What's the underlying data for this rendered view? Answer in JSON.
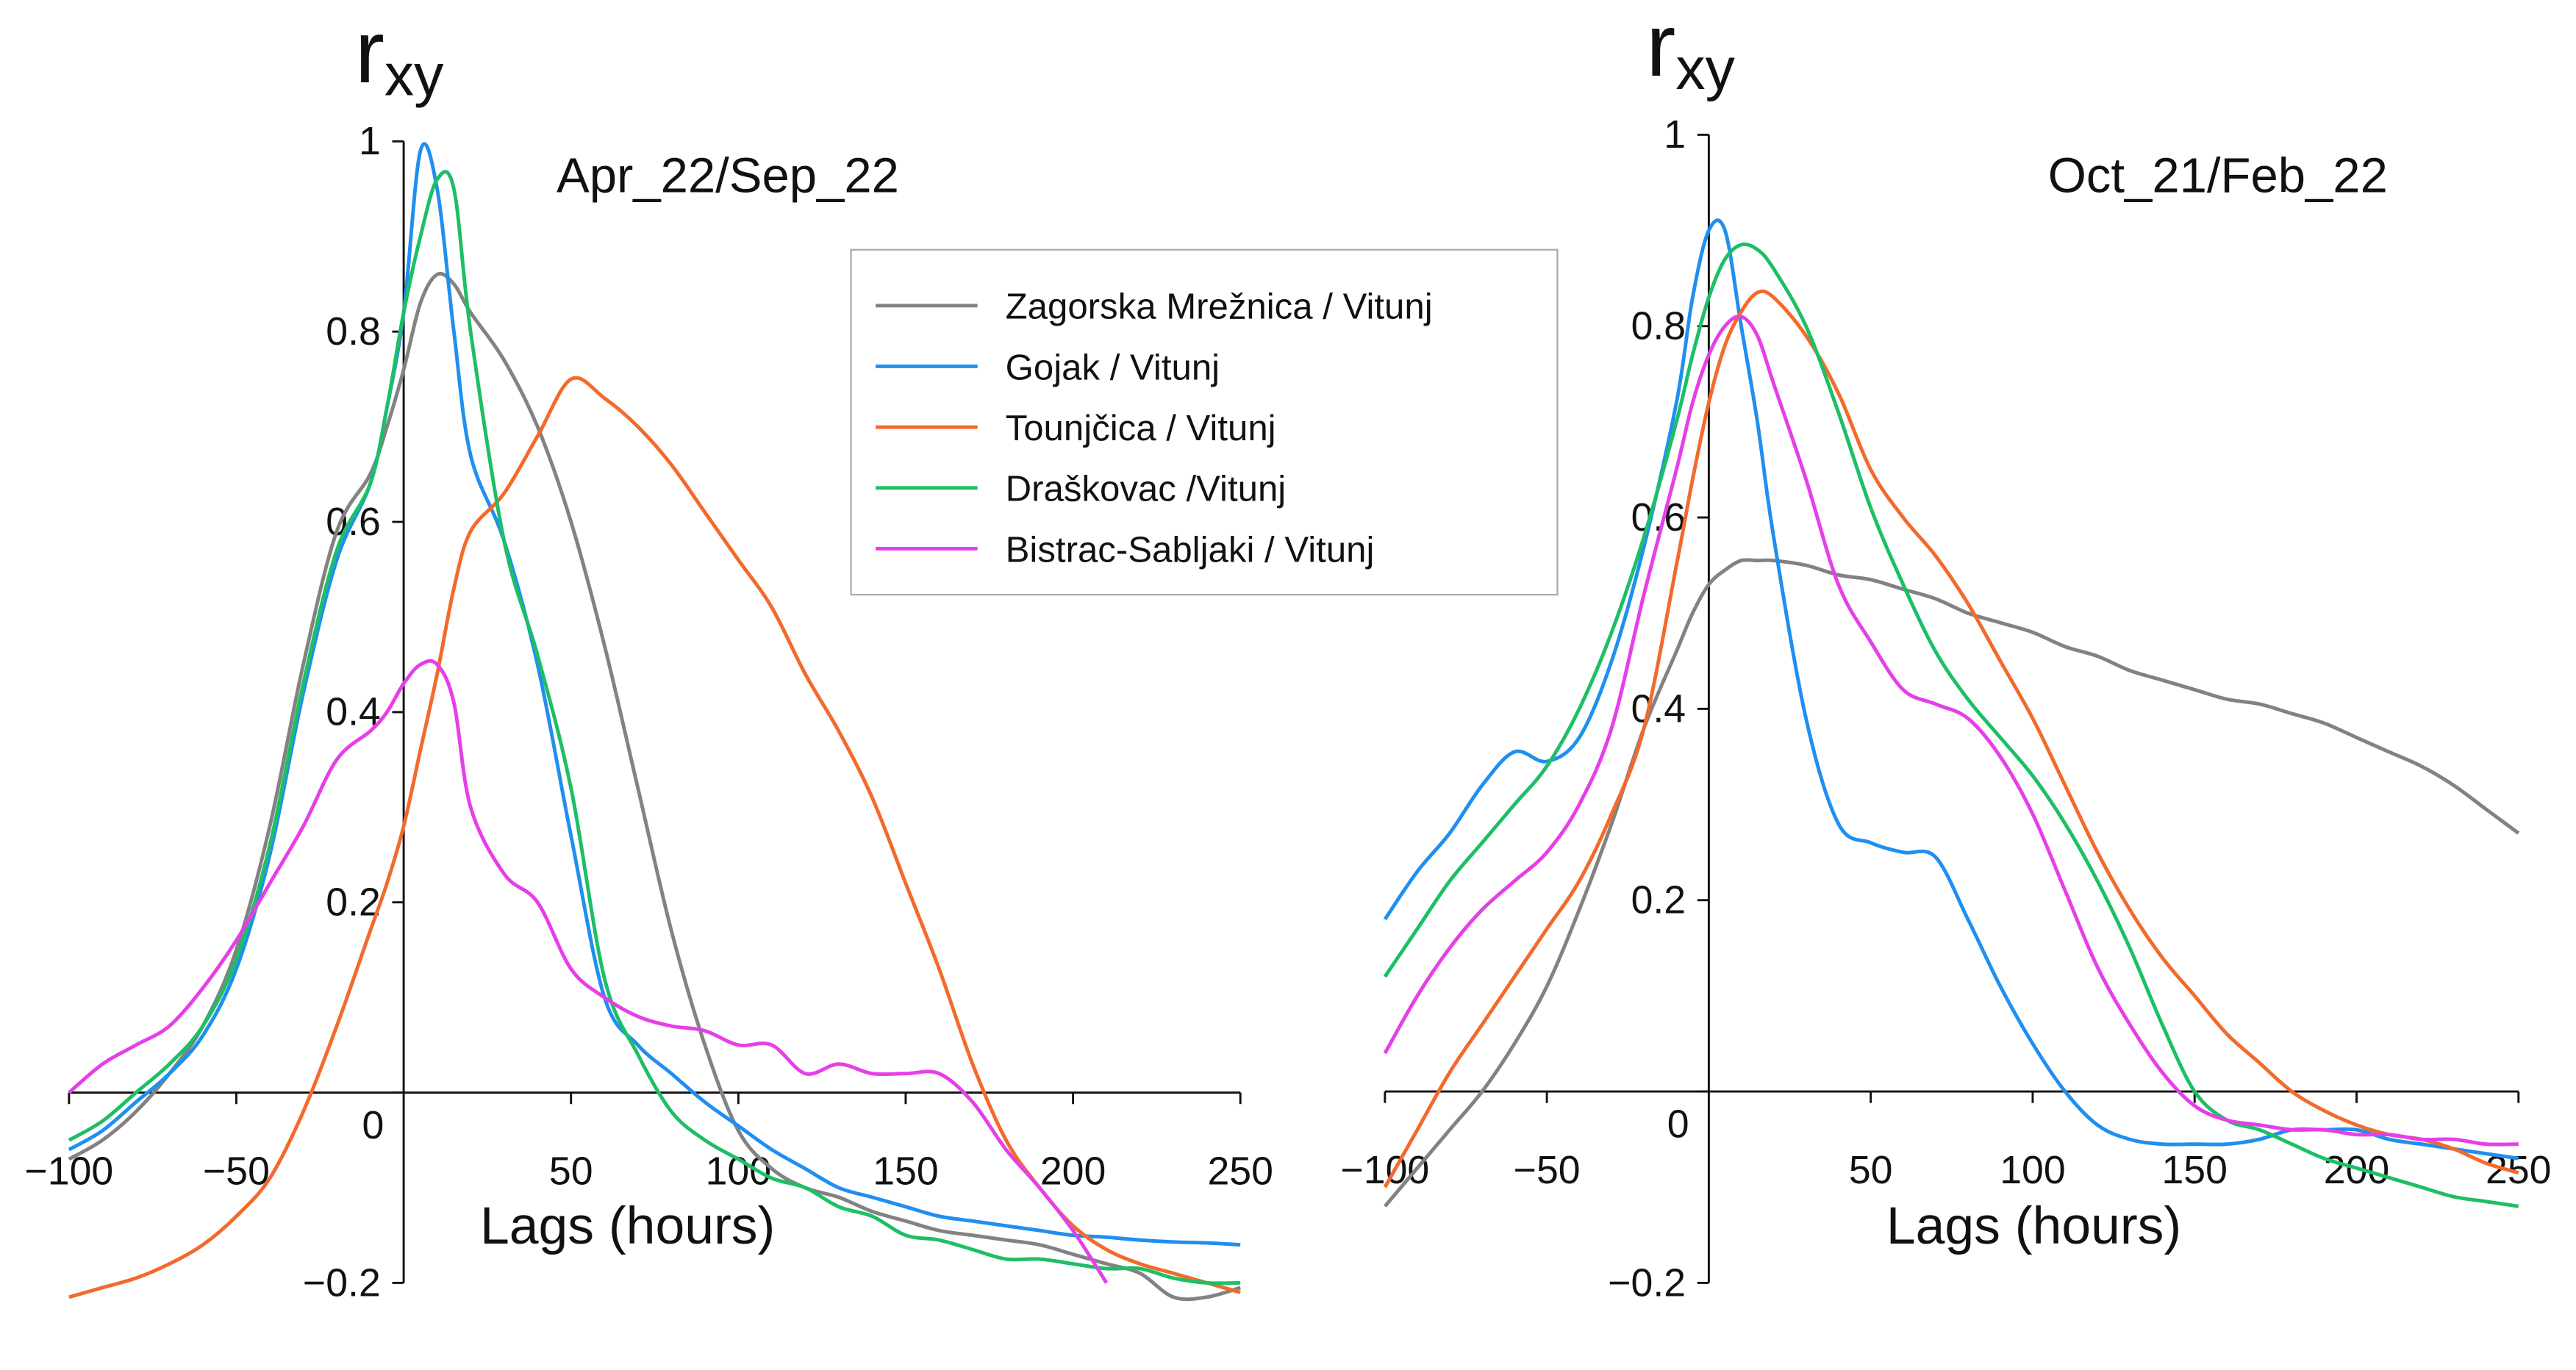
{
  "chart_data": [
    {
      "type": "line",
      "subtitle": "Apr_22/Sep_22",
      "xlabel": "Lags (hours)",
      "ylabel": "r",
      "ylabel_sub": "xy",
      "legend": true,
      "xlim": [
        -100,
        250
      ],
      "ylim": [
        -0.2,
        1
      ],
      "xticks": [
        {
          "value": -100,
          "label": "−100"
        },
        {
          "value": -50,
          "label": "−50"
        },
        50,
        100,
        150,
        200,
        250
      ],
      "yticks": [
        {
          "value": -0.2,
          "label": "−0.2"
        },
        0,
        0.2,
        0.4,
        0.6,
        0.8,
        1
      ],
      "x": [
        -100,
        -90,
        -80,
        -70,
        -60,
        -50,
        -40,
        -30,
        -20,
        -10,
        -5,
        0,
        5,
        10,
        15,
        20,
        30,
        40,
        50,
        60,
        70,
        80,
        90,
        100,
        110,
        120,
        130,
        140,
        150,
        160,
        170,
        180,
        190,
        200,
        210,
        220,
        230,
        240,
        250
      ],
      "series": [
        {
          "name": "Zagorska Mrežnica / Vitunj",
          "color": "#828282",
          "values": [
            -0.07,
            -0.05,
            -0.02,
            0.02,
            0.07,
            0.15,
            0.28,
            0.45,
            0.59,
            0.65,
            0.7,
            0.76,
            0.83,
            0.86,
            0.85,
            0.82,
            0.77,
            0.7,
            0.6,
            0.47,
            0.32,
            0.17,
            0.05,
            -0.04,
            -0.08,
            -0.1,
            -0.11,
            -0.125,
            -0.135,
            -0.145,
            -0.15,
            -0.155,
            -0.16,
            -0.17,
            -0.18,
            -0.19,
            -0.215,
            -0.215,
            -0.205
          ]
        },
        {
          "name": "Gojak  / Vitunj",
          "color": "#1f8ff0",
          "values": [
            -0.06,
            -0.04,
            -0.01,
            0.02,
            0.06,
            0.13,
            0.25,
            0.42,
            0.56,
            0.64,
            0.72,
            0.82,
            0.99,
            0.95,
            0.8,
            0.67,
            0.58,
            0.45,
            0.27,
            0.1,
            0.05,
            0.02,
            -0.01,
            -0.035,
            -0.06,
            -0.08,
            -0.1,
            -0.11,
            -0.12,
            -0.13,
            -0.135,
            -0.14,
            -0.145,
            -0.15,
            -0.152,
            -0.155,
            -0.157,
            -0.158,
            -0.16
          ]
        },
        {
          "name": "Tounjčica / Vitunj",
          "color": "#f26a2c",
          "values": [
            -0.215,
            -0.205,
            -0.195,
            -0.18,
            -0.16,
            -0.13,
            -0.09,
            -0.02,
            0.07,
            0.17,
            0.22,
            0.28,
            0.36,
            0.44,
            0.53,
            0.59,
            0.63,
            0.69,
            0.75,
            0.73,
            0.7,
            0.66,
            0.61,
            0.56,
            0.51,
            0.44,
            0.38,
            0.31,
            0.22,
            0.13,
            0.03,
            -0.05,
            -0.1,
            -0.14,
            -0.165,
            -0.18,
            -0.19,
            -0.2,
            -0.21
          ]
        },
        {
          "name": "Draškovac /Vitunj",
          "color": "#1dbf66",
          "values": [
            -0.05,
            -0.03,
            0.0,
            0.03,
            0.07,
            0.14,
            0.26,
            0.43,
            0.57,
            0.64,
            0.72,
            0.82,
            0.9,
            0.96,
            0.95,
            0.8,
            0.58,
            0.46,
            0.32,
            0.12,
            0.04,
            -0.02,
            -0.05,
            -0.07,
            -0.09,
            -0.1,
            -0.12,
            -0.13,
            -0.15,
            -0.155,
            -0.165,
            -0.175,
            -0.175,
            -0.18,
            -0.185,
            -0.185,
            -0.195,
            -0.2,
            -0.2
          ]
        },
        {
          "name": "Bistrac-Sabljaki  / Vitunj",
          "color": "#e53fe8",
          "values": [
            0.0,
            0.03,
            0.05,
            0.07,
            0.11,
            0.16,
            0.22,
            0.28,
            0.35,
            0.38,
            0.4,
            0.43,
            0.45,
            0.45,
            0.41,
            0.3,
            0.23,
            0.2,
            0.13,
            0.1,
            0.08,
            0.07,
            0.065,
            0.05,
            0.05,
            0.02,
            0.03,
            0.02,
            0.02,
            0.02,
            -0.01,
            -0.06,
            -0.1,
            -0.145,
            -0.2,
            null,
            null,
            null,
            null
          ]
        }
      ]
    },
    {
      "type": "line",
      "subtitle": "Oct_21/Feb_22",
      "xlabel": "Lags (hours)",
      "ylabel": "r",
      "ylabel_sub": "xy",
      "legend": false,
      "xlim": [
        -100,
        250
      ],
      "ylim": [
        -0.2,
        1
      ],
      "xticks": [
        {
          "value": -100,
          "label": "−100"
        },
        {
          "value": -50,
          "label": "−50"
        },
        50,
        100,
        150,
        200,
        250
      ],
      "yticks": [
        {
          "value": -0.2,
          "label": "−0.2"
        },
        0,
        0.2,
        0.4,
        0.6,
        0.8,
        1
      ],
      "x": [
        -100,
        -90,
        -80,
        -70,
        -60,
        -50,
        -40,
        -30,
        -20,
        -10,
        -5,
        0,
        5,
        10,
        15,
        20,
        30,
        40,
        50,
        60,
        70,
        80,
        90,
        100,
        110,
        120,
        130,
        140,
        150,
        160,
        170,
        180,
        190,
        200,
        210,
        220,
        230,
        240,
        250
      ],
      "series": [
        {
          "color": "#828282",
          "values": [
            -0.12,
            -0.08,
            -0.04,
            0.0,
            0.05,
            0.11,
            0.19,
            0.28,
            0.38,
            0.46,
            0.5,
            0.53,
            0.545,
            0.555,
            0.555,
            0.555,
            0.55,
            0.54,
            0.535,
            0.525,
            0.515,
            0.5,
            0.49,
            0.48,
            0.465,
            0.455,
            0.44,
            0.43,
            0.42,
            0.41,
            0.405,
            0.395,
            0.385,
            0.37,
            0.355,
            0.34,
            0.32,
            0.295,
            0.27
          ]
        },
        {
          "color": "#1f8ff0",
          "values": [
            0.18,
            0.23,
            0.27,
            0.32,
            0.355,
            0.345,
            0.37,
            0.45,
            0.57,
            0.72,
            0.83,
            0.9,
            0.9,
            0.8,
            0.7,
            0.58,
            0.39,
            0.28,
            0.26,
            0.25,
            0.245,
            0.18,
            0.11,
            0.05,
            0.0,
            -0.035,
            -0.05,
            -0.055,
            -0.055,
            -0.055,
            -0.05,
            -0.04,
            -0.04,
            -0.04,
            -0.05,
            -0.055,
            -0.06,
            -0.065,
            -0.07
          ]
        },
        {
          "color": "#f26a2c",
          "values": [
            -0.1,
            -0.04,
            0.02,
            0.07,
            0.12,
            0.17,
            0.22,
            0.29,
            0.38,
            0.55,
            0.64,
            0.72,
            0.78,
            0.815,
            0.835,
            0.83,
            0.79,
            0.73,
            0.65,
            0.6,
            0.56,
            0.51,
            0.45,
            0.39,
            0.32,
            0.25,
            0.19,
            0.14,
            0.1,
            0.06,
            0.03,
            0.0,
            -0.02,
            -0.035,
            -0.045,
            -0.05,
            -0.06,
            -0.075,
            -0.085
          ]
        },
        {
          "color": "#1dbf66",
          "values": [
            0.12,
            0.17,
            0.22,
            0.26,
            0.3,
            0.34,
            0.4,
            0.48,
            0.58,
            0.7,
            0.77,
            0.83,
            0.87,
            0.885,
            0.88,
            0.86,
            0.8,
            0.71,
            0.61,
            0.53,
            0.46,
            0.41,
            0.37,
            0.33,
            0.28,
            0.22,
            0.15,
            0.07,
            0.0,
            -0.03,
            -0.04,
            -0.055,
            -0.07,
            -0.08,
            -0.09,
            -0.1,
            -0.11,
            -0.115,
            -0.12
          ]
        },
        {
          "color": "#e53fe8",
          "values": [
            0.04,
            0.1,
            0.15,
            0.19,
            0.22,
            0.25,
            0.3,
            0.38,
            0.52,
            0.65,
            0.72,
            0.77,
            0.8,
            0.81,
            0.79,
            0.74,
            0.64,
            0.53,
            0.47,
            0.42,
            0.405,
            0.39,
            0.35,
            0.29,
            0.21,
            0.13,
            0.07,
            0.02,
            -0.015,
            -0.03,
            -0.035,
            -0.04,
            -0.04,
            -0.045,
            -0.045,
            -0.05,
            -0.05,
            -0.055,
            -0.055
          ]
        }
      ]
    }
  ]
}
